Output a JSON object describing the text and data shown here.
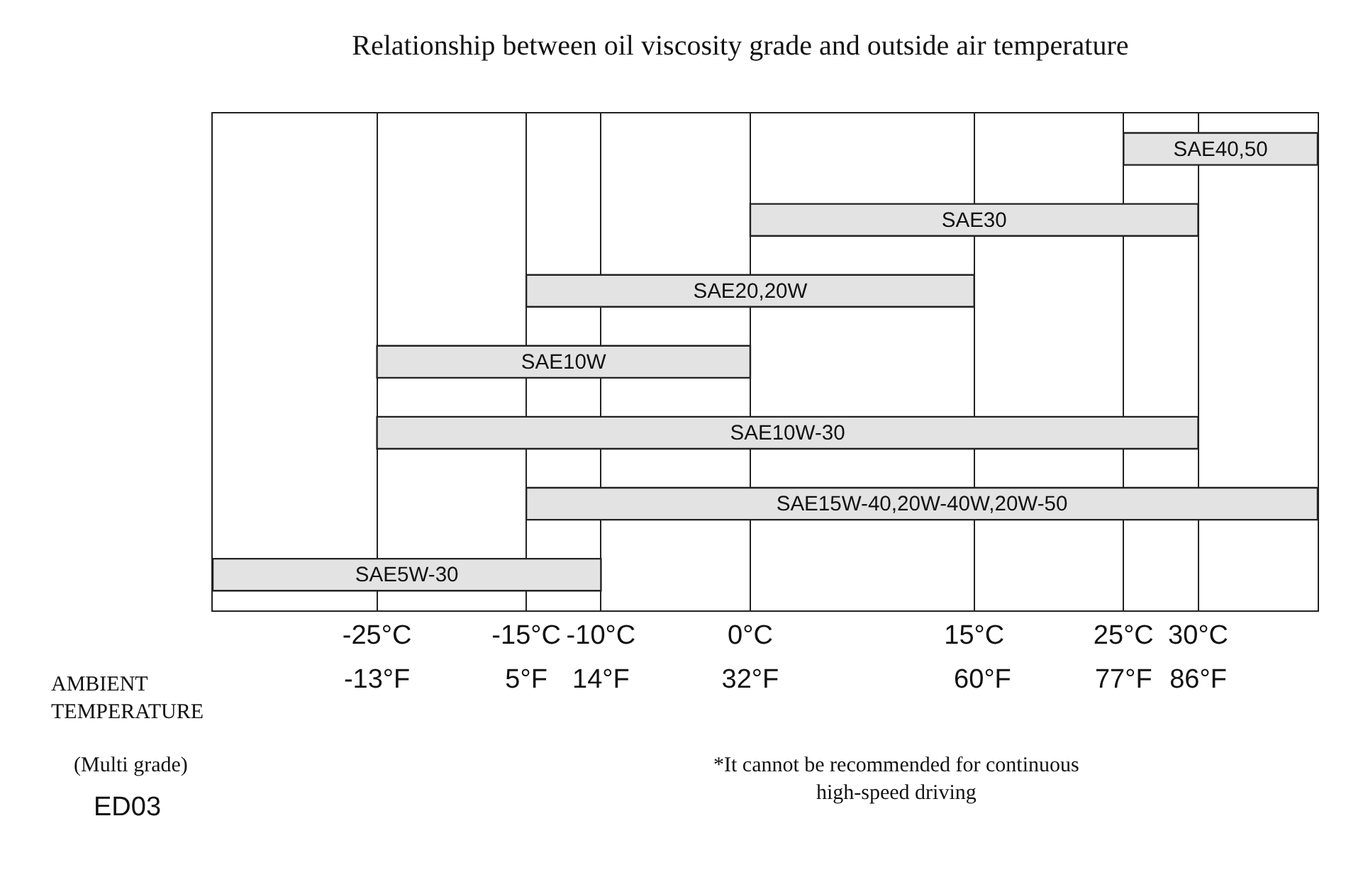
{
  "chart_data": {
    "type": "bar",
    "orientation": "horizontal",
    "title": "Relationship between oil viscosity grade and outside air temperature",
    "categories": [
      "SAE40,50",
      "SAE30",
      "SAE20,20W",
      "SAE10W",
      "SAE10W-30",
      "SAE15W-40,20W-40W,20W-50",
      "SAE5W-30"
    ],
    "base": [
      25,
      0,
      -15,
      -25,
      -25,
      -15,
      -36
    ],
    "values": [
      13,
      30,
      30,
      25,
      55,
      53,
      26
    ],
    "color": "#e3e3e3",
    "xlim": [
      -36,
      38
    ],
    "xticks": [
      {
        "value": -25,
        "label": "-25°C"
      },
      {
        "value": -15,
        "label": "-15°C"
      },
      {
        "value": -10,
        "label": "-10°C"
      },
      {
        "value": 0,
        "label": "0°C"
      },
      {
        "value": 15,
        "label": "15°C"
      },
      {
        "value": 25,
        "label": "25°C"
      },
      {
        "value": 30,
        "label": "30°C"
      }
    ],
    "x2lim": [
      -32.8,
      100.4
    ],
    "x2ticks": [
      {
        "value": -13,
        "label": "-13°F"
      },
      {
        "value": 5,
        "label": "5°F"
      },
      {
        "value": 14,
        "label": "14°F"
      },
      {
        "value": 32,
        "label": "32°F"
      },
      {
        "value": 60,
        "label": "60°F"
      },
      {
        "value": 77,
        "label": "77°F"
      },
      {
        "value": 86,
        "label": "86°F"
      }
    ],
    "grid": "x",
    "legend": false,
    "tick_labels": "x",
    "annotations": [
      "AMBIENT TEMPERATURE",
      "(Multi grade)",
      "*It cannot be recommended for continuous high-speed driving",
      "ED03"
    ]
  }
}
